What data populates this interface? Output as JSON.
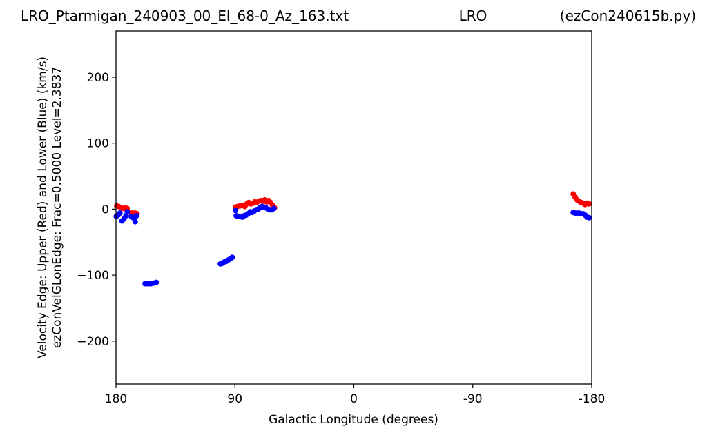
{
  "header": {
    "title_left": "LRO_Ptarmigan_240903_00_El_68-0_Az_163.txt",
    "title_center": "LRO",
    "title_right": "(ezCon240615b.py)"
  },
  "chart_data": {
    "type": "scatter",
    "xlabel": "Galactic Longitude (degrees)",
    "ylabel_line1": "Velocity Edge: Upper (Red) and Lower (Blue) (km/s)",
    "ylabel_line2": "ezConVelGLonEdge: Frac=0.5000 Level=2.3837",
    "xlim": [
      180,
      -180
    ],
    "ylim": [
      -265,
      270
    ],
    "xticks": [
      {
        "value": 180,
        "label": "180"
      },
      {
        "value": 90,
        "label": "90"
      },
      {
        "value": 0,
        "label": "0"
      },
      {
        "value": -90,
        "label": "-90"
      },
      {
        "value": -180,
        "label": "-180"
      }
    ],
    "yticks": [
      {
        "value": 200,
        "label": "200"
      },
      {
        "value": 100,
        "label": "100"
      },
      {
        "value": 0,
        "label": "0"
      },
      {
        "value": -100,
        "label": "−100"
      },
      {
        "value": -200,
        "label": "−200"
      }
    ],
    "series": [
      {
        "color": "#ff0000",
        "points": [
          [
            179.5,
            5
          ],
          [
            178,
            4
          ],
          [
            176,
            2
          ],
          [
            174.5,
            1
          ],
          [
            173,
            2
          ],
          [
            171.5,
            1
          ],
          [
            168.5,
            -6
          ],
          [
            167,
            -6
          ],
          [
            165.5,
            -6
          ],
          [
            164,
            -7
          ],
          [
            89.5,
            3
          ],
          [
            88,
            4
          ],
          [
            86,
            5
          ],
          [
            84.5,
            6
          ],
          [
            82.5,
            4
          ],
          [
            81,
            8
          ],
          [
            79.5,
            10
          ],
          [
            78,
            8
          ],
          [
            76.5,
            9
          ],
          [
            75,
            11
          ],
          [
            73.5,
            10
          ],
          [
            72,
            12
          ],
          [
            70.5,
            13
          ],
          [
            69,
            12
          ],
          [
            67.5,
            14
          ],
          [
            66,
            11
          ],
          [
            64.5,
            13
          ],
          [
            63,
            10
          ],
          [
            61.5,
            6
          ],
          [
            60,
            2
          ],
          [
            -166,
            23
          ],
          [
            -167.5,
            18
          ],
          [
            -169,
            14
          ],
          [
            -170.5,
            12
          ],
          [
            -172,
            10
          ],
          [
            -173.5,
            9
          ],
          [
            -175,
            7
          ],
          [
            -176.5,
            9
          ],
          [
            -178,
            8
          ]
        ]
      },
      {
        "color": "#0000ff",
        "points": [
          [
            179.8,
            -11
          ],
          [
            178.5,
            -9
          ],
          [
            177,
            -6
          ],
          [
            175.5,
            -18
          ],
          [
            174,
            -15
          ],
          [
            172.5,
            -10
          ],
          [
            171.5,
            -4
          ],
          [
            168.5,
            -11
          ],
          [
            167,
            -13
          ],
          [
            165.5,
            -19
          ],
          [
            164.5,
            -10
          ],
          [
            158,
            -113
          ],
          [
            156.5,
            -113
          ],
          [
            155,
            -113
          ],
          [
            153.5,
            -113
          ],
          [
            151.5,
            -112
          ],
          [
            149.5,
            -111
          ],
          [
            101,
            -83
          ],
          [
            99.5,
            -82
          ],
          [
            98,
            -80
          ],
          [
            96.5,
            -79
          ],
          [
            95,
            -77
          ],
          [
            93.5,
            -75
          ],
          [
            92,
            -73
          ],
          [
            89.5,
            -2
          ],
          [
            89,
            -10
          ],
          [
            87.5,
            -11
          ],
          [
            86,
            -11
          ],
          [
            84.5,
            -12
          ],
          [
            83,
            -10
          ],
          [
            81.5,
            -9
          ],
          [
            80,
            -7
          ],
          [
            78.5,
            -4
          ],
          [
            77,
            -5
          ],
          [
            75.5,
            -3
          ],
          [
            74,
            -1
          ],
          [
            72.5,
            0
          ],
          [
            71,
            2
          ],
          [
            69.5,
            4
          ],
          [
            68,
            3
          ],
          [
            66.5,
            2
          ],
          [
            65,
            0
          ],
          [
            63.5,
            -1
          ],
          [
            62,
            -1
          ],
          [
            60.5,
            1
          ],
          [
            -166,
            -5
          ],
          [
            -167.5,
            -6
          ],
          [
            -169,
            -6
          ],
          [
            -170.5,
            -6
          ],
          [
            -172,
            -7
          ],
          [
            -173.5,
            -7
          ],
          [
            -175,
            -9
          ],
          [
            -176.5,
            -12
          ],
          [
            -178,
            -13
          ]
        ]
      }
    ]
  }
}
